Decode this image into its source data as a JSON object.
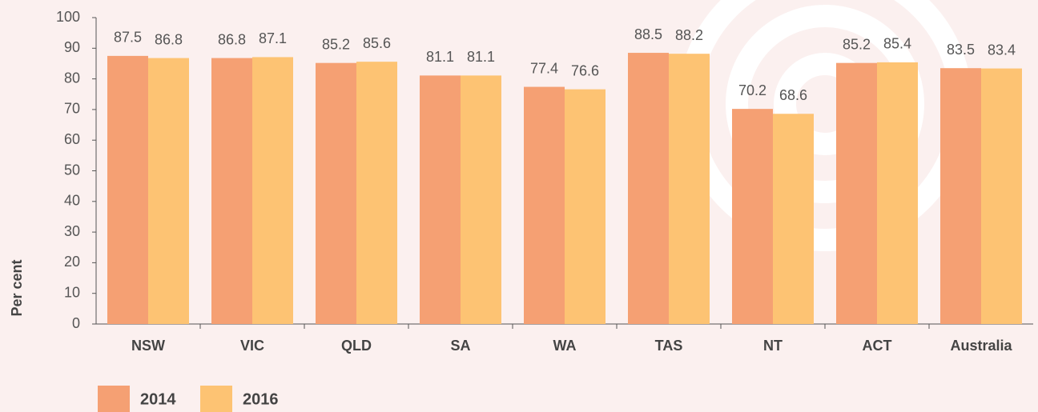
{
  "chart_data": {
    "type": "bar",
    "y_label": "Per cent",
    "categories": [
      "NSW",
      "VIC",
      "QLD",
      "SA",
      "WA",
      "TAS",
      "NT",
      "ACT",
      "Australia"
    ],
    "series": [
      {
        "name": "2014",
        "color": "#f5a073",
        "values": [
          87.5,
          86.8,
          85.2,
          81.1,
          77.4,
          88.5,
          70.2,
          85.2,
          83.5
        ]
      },
      {
        "name": "2016",
        "color": "#fdc373",
        "values": [
          86.8,
          87.1,
          85.6,
          81.1,
          76.6,
          88.2,
          68.6,
          85.4,
          83.4
        ]
      }
    ],
    "ylim": [
      0,
      100
    ],
    "yticks": [
      0,
      10,
      20,
      30,
      40,
      50,
      60,
      70,
      80,
      90,
      100
    ]
  }
}
